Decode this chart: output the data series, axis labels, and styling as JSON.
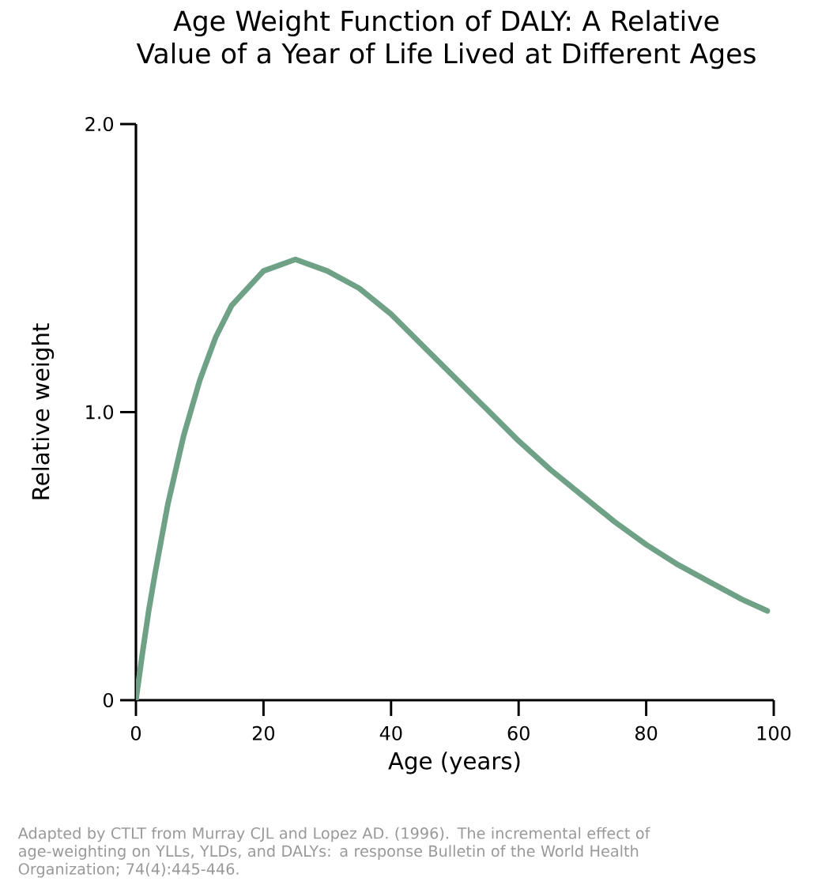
{
  "chart_data": {
    "type": "line",
    "title": "Age Weight Function of DALY: A Relative Value of a Year of Life Lived at Different Ages",
    "xlabel": "Age (years)",
    "ylabel": "Relative weight",
    "annotations": [
      "Adapted by CTLT from Murray CJL and Lopez AD. (1996). The incremental effect of age-weighting on YLLs, YLDs, and DALYs: a response Bulletin of the World Health Organization; 74(4):445-446."
    ],
    "xlim": [
      0,
      100
    ],
    "xticks": [
      0,
      20,
      40,
      60,
      80,
      100
    ],
    "ylim": [
      0,
      2.0
    ],
    "yticks": [
      0,
      {
        "value": 1.0,
        "label": "1.0"
      },
      {
        "value": 2.0,
        "label": "2.0"
      }
    ],
    "marker": "none",
    "line_style": "solid",
    "series": [
      {
        "color": "#6fa187",
        "x": [
          0,
          1,
          2,
          3,
          5,
          7.5,
          10,
          12.5,
          15,
          20,
          25,
          30,
          35,
          40,
          45,
          50,
          55,
          60,
          65,
          70,
          75,
          80,
          85,
          90,
          95,
          99
        ],
        "values": [
          0,
          0.16,
          0.31,
          0.44,
          0.68,
          0.92,
          1.11,
          1.26,
          1.37,
          1.49,
          1.53,
          1.49,
          1.43,
          1.34,
          1.23,
          1.12,
          1.01,
          0.9,
          0.8,
          0.71,
          0.62,
          0.54,
          0.47,
          0.41,
          0.35,
          0.31
        ]
      }
    ]
  }
}
